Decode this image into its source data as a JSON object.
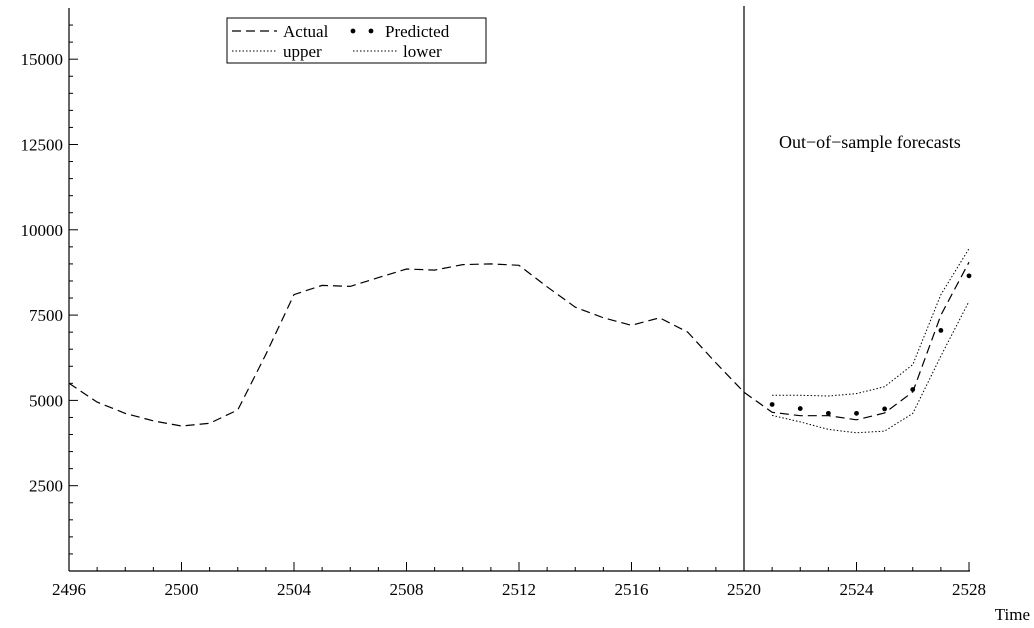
{
  "chart_data": {
    "type": "line",
    "xlabel": "Time",
    "ylabel": "",
    "xlim": [
      2496,
      2528
    ],
    "ylim": [
      0,
      16500
    ],
    "x_ticks": [
      2496,
      2500,
      2504,
      2508,
      2512,
      2516,
      2520,
      2524,
      2528
    ],
    "y_ticks": [
      2500,
      5000,
      7500,
      10000,
      12500,
      15000
    ],
    "vertical_line_x": 2520,
    "annotation": "Out−of−sample forecasts",
    "legend": {
      "position": "top-left",
      "entries": [
        "Actual",
        "Predicted",
        "upper",
        "lower"
      ]
    },
    "series": [
      {
        "name": "Actual",
        "style": "dashed",
        "x": [
          2496,
          2497,
          2498,
          2499,
          2500,
          2501,
          2502,
          2503,
          2504,
          2505,
          2506,
          2507,
          2508,
          2509,
          2510,
          2511,
          2512,
          2513,
          2514,
          2515,
          2516,
          2517,
          2518,
          2519,
          2520,
          2521,
          2522,
          2523,
          2524,
          2525,
          2526,
          2527,
          2528
        ],
        "values": [
          5500,
          4950,
          4620,
          4400,
          4250,
          4330,
          4720,
          6350,
          8100,
          8370,
          8340,
          8600,
          8850,
          8820,
          8980,
          9000,
          8960,
          8330,
          7730,
          7420,
          7200,
          7420,
          7000,
          6100,
          5240,
          4650,
          4550,
          4550,
          4430,
          4630,
          5250,
          7500,
          9050
        ]
      },
      {
        "name": "Predicted",
        "style": "dots",
        "x": [
          2521,
          2522,
          2523,
          2524,
          2525,
          2526,
          2527,
          2528
        ],
        "values": [
          4880,
          4760,
          4620,
          4620,
          4750,
          5320,
          7050,
          8650
        ]
      },
      {
        "name": "upper",
        "style": "dotted",
        "x": [
          2521,
          2522,
          2523,
          2524,
          2525,
          2526,
          2527,
          2528
        ],
        "values": [
          5150,
          5150,
          5130,
          5200,
          5400,
          6050,
          8100,
          9450
        ]
      },
      {
        "name": "lower",
        "style": "dotted",
        "x": [
          2521,
          2522,
          2523,
          2524,
          2525,
          2526,
          2527,
          2528
        ],
        "values": [
          4560,
          4370,
          4150,
          4050,
          4100,
          4620,
          6300,
          7900
        ]
      }
    ]
  }
}
